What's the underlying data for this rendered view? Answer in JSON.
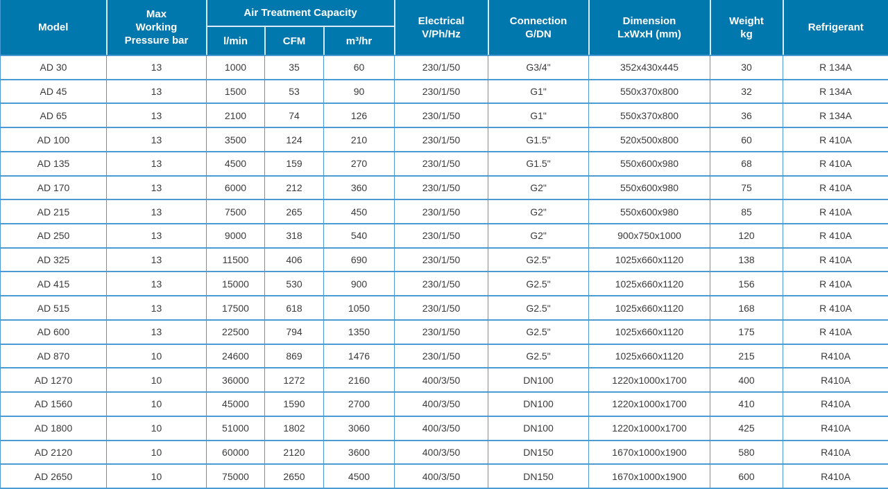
{
  "table": {
    "header": {
      "model": "Model",
      "pressure": [
        "Max",
        "Working",
        "Pressure bar"
      ],
      "capacity_group": "Air Treatment Capacity",
      "capacity_sub": [
        "l/min",
        "CFM",
        "m³/hr"
      ],
      "electrical": [
        "Electrical",
        "V/Ph/Hz"
      ],
      "connection": [
        "Connection",
        "G/DN"
      ],
      "dimension": [
        "Dimension",
        "LxWxH (mm)"
      ],
      "weight": [
        "Weight",
        "kg"
      ],
      "refrigerant": "Refrigerant"
    },
    "column_keys": [
      "model",
      "pressure",
      "lmin",
      "cfm",
      "m3hr",
      "electrical",
      "connection",
      "dimension",
      "weight",
      "refrigerant"
    ],
    "rows": [
      [
        "AD 30",
        "13",
        "1000",
        "35",
        "60",
        "230/1/50",
        "G3/4\"",
        "352x430x445",
        "30",
        "R 134A"
      ],
      [
        "AD 45",
        "13",
        "1500",
        "53",
        "90",
        "230/1/50",
        "G1\"",
        "550x370x800",
        "32",
        "R 134A"
      ],
      [
        "AD 65",
        "13",
        "2100",
        "74",
        "126",
        "230/1/50",
        "G1\"",
        "550x370x800",
        "36",
        "R 134A"
      ],
      [
        "AD 100",
        "13",
        "3500",
        "124",
        "210",
        "230/1/50",
        "G1.5\"",
        "520x500x800",
        "60",
        "R 410A"
      ],
      [
        "AD 135",
        "13",
        "4500",
        "159",
        "270",
        "230/1/50",
        "G1.5\"",
        "550x600x980",
        "68",
        "R 410A"
      ],
      [
        "AD 170",
        "13",
        "6000",
        "212",
        "360",
        "230/1/50",
        "G2\"",
        "550x600x980",
        "75",
        "R 410A"
      ],
      [
        "AD 215",
        "13",
        "7500",
        "265",
        "450",
        "230/1/50",
        "G2\"",
        "550x600x980",
        "85",
        "R 410A"
      ],
      [
        "AD 250",
        "13",
        "9000",
        "318",
        "540",
        "230/1/50",
        "G2\"",
        "900x750x1000",
        "120",
        "R 410A"
      ],
      [
        "AD 325",
        "13",
        "11500",
        "406",
        "690",
        "230/1/50",
        "G2.5\"",
        "1025x660x1120",
        "138",
        "R 410A"
      ],
      [
        "AD 415",
        "13",
        "15000",
        "530",
        "900",
        "230/1/50",
        "G2.5\"",
        "1025x660x1120",
        "156",
        "R 410A"
      ],
      [
        "AD 515",
        "13",
        "17500",
        "618",
        "1050",
        "230/1/50",
        "G2.5\"",
        "1025x660x1120",
        "168",
        "R 410A"
      ],
      [
        "AD 600",
        "13",
        "22500",
        "794",
        "1350",
        "230/1/50",
        "G2.5\"",
        "1025x660x1120",
        "175",
        "R 410A"
      ],
      [
        "AD 870",
        "10",
        "24600",
        "869",
        "1476",
        "230/1/50",
        "G2.5\"",
        "1025x660x1120",
        "215",
        "R410A"
      ],
      [
        "AD 1270",
        "10",
        "36000",
        "1272",
        "2160",
        "400/3/50",
        "DN100",
        "1220x1000x1700",
        "400",
        "R410A"
      ],
      [
        "AD 1560",
        "10",
        "45000",
        "1590",
        "2700",
        "400/3/50",
        "DN100",
        "1220x1000x1700",
        "410",
        "R410A"
      ],
      [
        "AD 1800",
        "10",
        "51000",
        "1802",
        "3060",
        "400/3/50",
        "DN100",
        "1220x1000x1700",
        "425",
        "R410A"
      ],
      [
        "AD 2120",
        "10",
        "60000",
        "2120",
        "3600",
        "400/3/50",
        "DN150",
        "1670x1000x1900",
        "580",
        "R410A"
      ],
      [
        "AD 2650",
        "10",
        "75000",
        "2650",
        "4500",
        "400/3/50",
        "DN150",
        "1670x1000x1900",
        "600",
        "R410A"
      ]
    ]
  },
  "colors": {
    "header_bg": "#0077ad",
    "grid_line": "#4a9bd4",
    "header_divider": "#d8ecf8",
    "body_text": "#3a3a3a",
    "header_text": "#ffffff"
  }
}
